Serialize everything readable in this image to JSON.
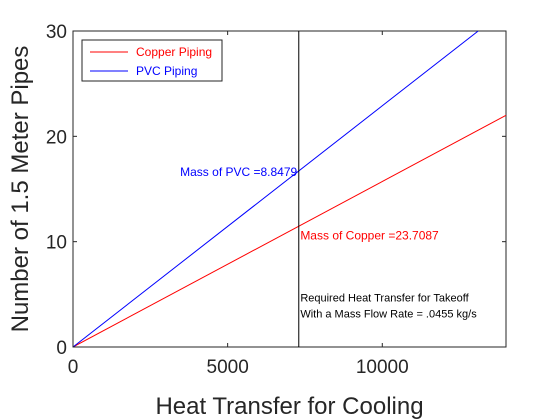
{
  "chart_data": {
    "type": "line",
    "title": "",
    "xlabel": "Heat Transfer for Cooling",
    "ylabel": "Number of 1.5 Meter Pipes",
    "xlim": [
      0,
      14000
    ],
    "ylim": [
      0,
      30
    ],
    "xticks": [
      0,
      5000,
      10000
    ],
    "yticks": [
      0,
      10,
      20,
      30
    ],
    "xtick_labels": [
      "0",
      "5000",
      "10000"
    ],
    "ytick_labels": [
      "0",
      "10",
      "20",
      "30"
    ],
    "grid": false,
    "legend_position": "top-left",
    "series": [
      {
        "name": "Copper Piping",
        "color": "#ff0000",
        "x": [
          0,
          14000
        ],
        "y": [
          0,
          22
        ]
      },
      {
        "name": "PVC Piping",
        "color": "#0000ff",
        "x": [
          0,
          13100
        ],
        "y": [
          0,
          30
        ]
      }
    ],
    "vline": {
      "x": 7300,
      "color": "#000000"
    },
    "annotations": [
      {
        "text": "Mass of PVC =8.8479",
        "x": 7250,
        "y": 16.6,
        "color": "#0000ff",
        "anchor": "end"
      },
      {
        "text": "Mass of Copper =23.7087",
        "x": 7350,
        "y": 10.6,
        "color": "#ff0000",
        "anchor": "start"
      },
      {
        "text": "Required Heat Transfer for Takeoff",
        "x": 7350,
        "y": 4.7,
        "color": "#000000",
        "anchor": "start"
      },
      {
        "text": "With a Mass Flow Rate = .0455 kg/s",
        "x": 7350,
        "y": 3.2,
        "color": "#000000",
        "anchor": "start"
      }
    ]
  }
}
